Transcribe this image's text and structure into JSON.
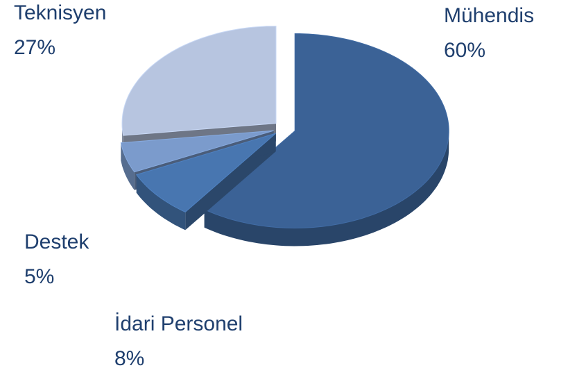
{
  "chart_data": {
    "type": "pie",
    "categories": [
      "Mühendis",
      "İdari Personel",
      "Destek",
      "Teknisyen"
    ],
    "values": [
      60,
      8,
      5,
      27
    ],
    "value_labels": [
      "60%",
      "8%",
      "5%",
      "27%"
    ],
    "colors": [
      "#3b6296",
      "#4876b0",
      "#7b9bcc",
      "#b7c5e0"
    ]
  }
}
